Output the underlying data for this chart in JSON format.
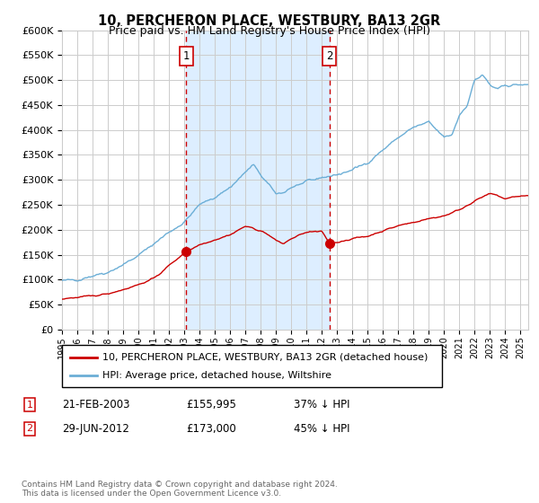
{
  "title": "10, PERCHERON PLACE, WESTBURY, BA13 2GR",
  "subtitle": "Price paid vs. HM Land Registry's House Price Index (HPI)",
  "ylim": [
    0,
    600000
  ],
  "yticks": [
    0,
    50000,
    100000,
    150000,
    200000,
    250000,
    300000,
    350000,
    400000,
    450000,
    500000,
    550000,
    600000
  ],
  "xlim_start": 1995.0,
  "xlim_end": 2025.5,
  "sale1_date": 2003.13,
  "sale1_price": 155995,
  "sale1_label": "1",
  "sale1_text": "21-FEB-2003",
  "sale1_amount": "£155,995",
  "sale1_pct": "37% ↓ HPI",
  "sale2_date": 2012.49,
  "sale2_price": 173000,
  "sale2_label": "2",
  "sale2_text": "29-JUN-2012",
  "sale2_amount": "£173,000",
  "sale2_pct": "45% ↓ HPI",
  "hpi_color": "#6baed6",
  "price_color": "#cc0000",
  "shade_color": "#ddeeff",
  "grid_color": "#cccccc",
  "bg_color": "#ffffff",
  "dashed_color": "#cc0000",
  "legend_red_label": "10, PERCHERON PLACE, WESTBURY, BA13 2GR (detached house)",
  "legend_blue_label": "HPI: Average price, detached house, Wiltshire",
  "footer": "Contains HM Land Registry data © Crown copyright and database right 2024.\nThis data is licensed under the Open Government Licence v3.0."
}
